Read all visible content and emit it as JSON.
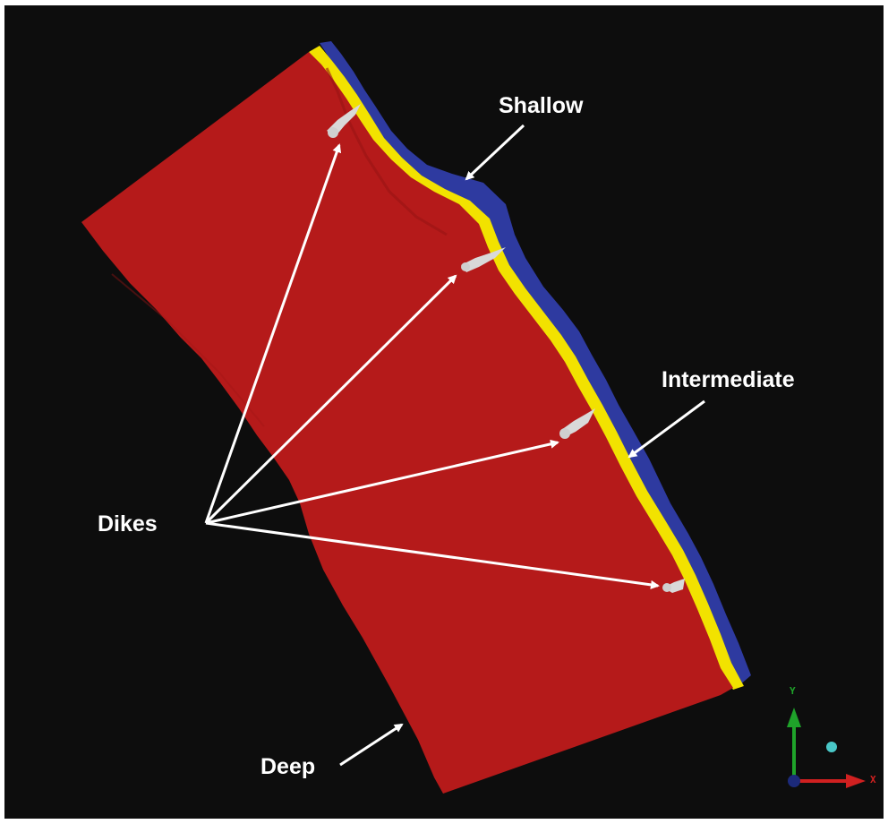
{
  "labels": {
    "shallow": "Shallow",
    "intermediate": "Intermediate",
    "dikes": "Dikes",
    "deep": "Deep"
  },
  "axes": {
    "y_label": "Y",
    "x_label": "X"
  },
  "colors": {
    "background": "#0d0d0d",
    "deep_surface": "#b51a1a",
    "intermediate_surface": "#f2e200",
    "shallow_surface": "#2e3aa0",
    "dikes": "#d9d9d9",
    "arrows": "#ffffff",
    "y_axis": "#1fa32a",
    "x_axis": "#d02020",
    "z_axis": "#1c2a7a",
    "marker": "#49c7c7"
  }
}
